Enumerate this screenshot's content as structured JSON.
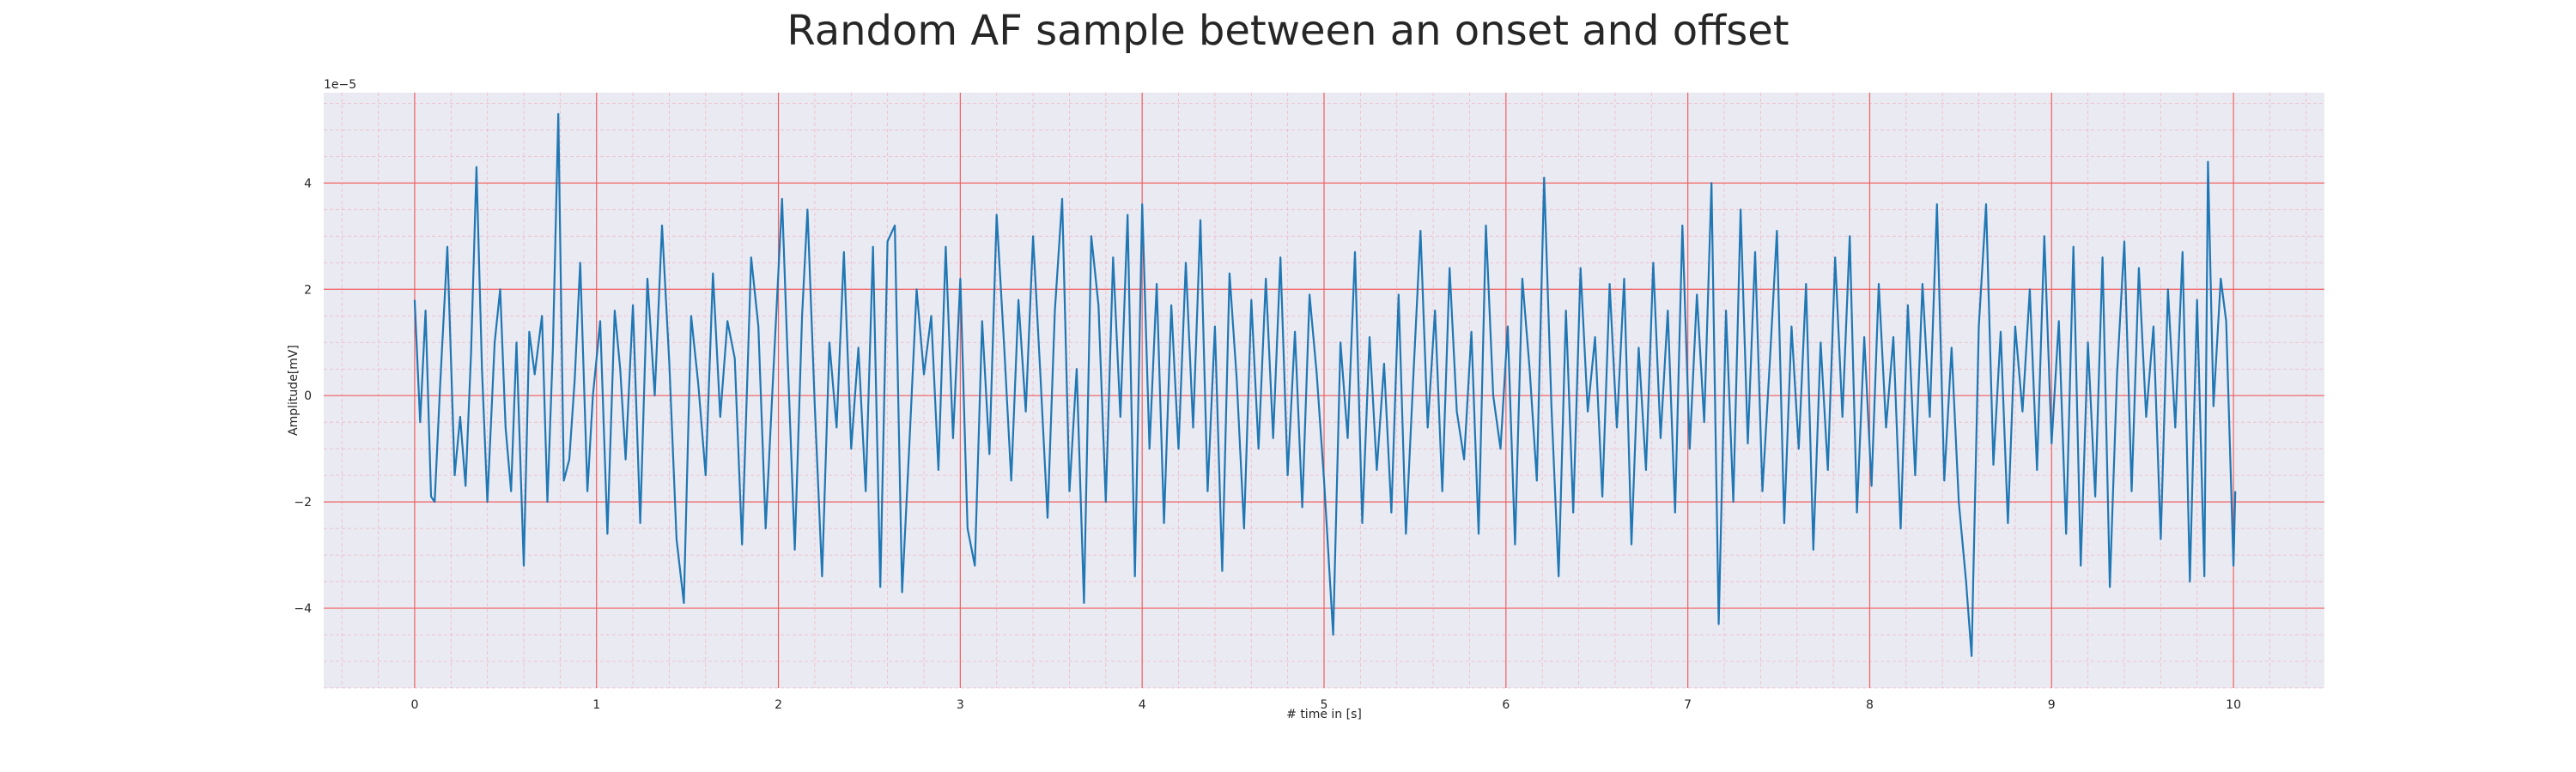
{
  "chart_data": {
    "type": "line",
    "title": "Random AF sample between an onset and offset",
    "xlabel": "# time in [s]",
    "ylabel": "Amplitude[mV]",
    "y_offset_text": "1e−5",
    "xlim": [
      -0.5,
      10.5
    ],
    "ylim": [
      -5.5,
      5.7
    ],
    "x_ticks": [
      0,
      1,
      2,
      3,
      4,
      5,
      6,
      7,
      8,
      9,
      10
    ],
    "y_ticks": [
      -4,
      -2,
      0,
      2,
      4
    ],
    "x_tick_labels": [
      "0",
      "1",
      "2",
      "3",
      "4",
      "5",
      "6",
      "7",
      "8",
      "9",
      "10"
    ],
    "y_tick_labels": [
      "−4",
      "−2",
      "0",
      "2",
      "4"
    ],
    "grid": true,
    "series": [
      {
        "color": "#1f77b4",
        "points": [
          [
            0.0,
            1.8
          ],
          [
            0.03,
            -0.5
          ],
          [
            0.06,
            1.6
          ],
          [
            0.09,
            -1.9
          ],
          [
            0.11,
            -2.0
          ],
          [
            0.14,
            0.2
          ],
          [
            0.18,
            2.8
          ],
          [
            0.22,
            -1.5
          ],
          [
            0.25,
            -0.4
          ],
          [
            0.28,
            -1.7
          ],
          [
            0.31,
            0.8
          ],
          [
            0.34,
            4.3
          ],
          [
            0.37,
            0.5
          ],
          [
            0.4,
            -2.0
          ],
          [
            0.44,
            1.0
          ],
          [
            0.47,
            2.0
          ],
          [
            0.5,
            -0.6
          ],
          [
            0.53,
            -1.8
          ],
          [
            0.56,
            1.0
          ],
          [
            0.6,
            -3.2
          ],
          [
            0.63,
            1.2
          ],
          [
            0.66,
            0.4
          ],
          [
            0.7,
            1.5
          ],
          [
            0.73,
            -2.0
          ],
          [
            0.76,
            0.9
          ],
          [
            0.79,
            5.3
          ],
          [
            0.82,
            -1.6
          ],
          [
            0.85,
            -1.2
          ],
          [
            0.88,
            0.3
          ],
          [
            0.91,
            2.5
          ],
          [
            0.95,
            -1.8
          ],
          [
            0.98,
            0.0
          ],
          [
            1.02,
            1.4
          ],
          [
            1.06,
            -2.6
          ],
          [
            1.1,
            1.6
          ],
          [
            1.13,
            0.5
          ],
          [
            1.16,
            -1.2
          ],
          [
            1.2,
            1.7
          ],
          [
            1.24,
            -2.4
          ],
          [
            1.28,
            2.2
          ],
          [
            1.32,
            0.0
          ],
          [
            1.36,
            3.2
          ],
          [
            1.4,
            0.6
          ],
          [
            1.44,
            -2.7
          ],
          [
            1.48,
            -3.9
          ],
          [
            1.52,
            1.5
          ],
          [
            1.56,
            0.2
          ],
          [
            1.6,
            -1.5
          ],
          [
            1.64,
            2.3
          ],
          [
            1.68,
            -0.4
          ],
          [
            1.72,
            1.4
          ],
          [
            1.76,
            0.7
          ],
          [
            1.8,
            -2.8
          ],
          [
            1.85,
            2.6
          ],
          [
            1.89,
            1.3
          ],
          [
            1.93,
            -2.5
          ],
          [
            1.97,
            0.3
          ],
          [
            2.02,
            3.7
          ],
          [
            2.05,
            0.8
          ],
          [
            2.09,
            -2.9
          ],
          [
            2.13,
            1.5
          ],
          [
            2.16,
            3.5
          ],
          [
            2.2,
            -0.2
          ],
          [
            2.24,
            -3.4
          ],
          [
            2.28,
            1.0
          ],
          [
            2.32,
            -0.6
          ],
          [
            2.36,
            2.7
          ],
          [
            2.4,
            -1.0
          ],
          [
            2.44,
            0.9
          ],
          [
            2.48,
            -1.8
          ],
          [
            2.52,
            2.8
          ],
          [
            2.56,
            -3.6
          ],
          [
            2.6,
            2.9
          ],
          [
            2.64,
            3.2
          ],
          [
            2.68,
            -3.7
          ],
          [
            2.72,
            -0.9
          ],
          [
            2.76,
            2.0
          ],
          [
            2.8,
            0.4
          ],
          [
            2.84,
            1.5
          ],
          [
            2.88,
            -1.4
          ],
          [
            2.92,
            2.8
          ],
          [
            2.96,
            -0.8
          ],
          [
            3.0,
            2.2
          ],
          [
            3.04,
            -2.5
          ],
          [
            3.08,
            -3.2
          ],
          [
            3.12,
            1.4
          ],
          [
            3.16,
            -1.1
          ],
          [
            3.2,
            3.4
          ],
          [
            3.24,
            1.0
          ],
          [
            3.28,
            -1.6
          ],
          [
            3.32,
            1.8
          ],
          [
            3.36,
            -0.3
          ],
          [
            3.4,
            3.0
          ],
          [
            3.44,
            0.4
          ],
          [
            3.48,
            -2.3
          ],
          [
            3.52,
            1.6
          ],
          [
            3.56,
            3.7
          ],
          [
            3.6,
            -1.8
          ],
          [
            3.64,
            0.5
          ],
          [
            3.68,
            -3.9
          ],
          [
            3.72,
            3.0
          ],
          [
            3.76,
            1.7
          ],
          [
            3.8,
            -2.0
          ],
          [
            3.84,
            2.6
          ],
          [
            3.88,
            -0.4
          ],
          [
            3.92,
            3.4
          ],
          [
            3.96,
            -3.4
          ],
          [
            4.0,
            3.6
          ],
          [
            4.04,
            -1.0
          ],
          [
            4.08,
            2.1
          ],
          [
            4.12,
            -2.4
          ],
          [
            4.16,
            1.7
          ],
          [
            4.2,
            -1.0
          ],
          [
            4.24,
            2.5
          ],
          [
            4.28,
            -0.6
          ],
          [
            4.32,
            3.3
          ],
          [
            4.36,
            -1.8
          ],
          [
            4.4,
            1.3
          ],
          [
            4.44,
            -3.3
          ],
          [
            4.48,
            2.3
          ],
          [
            4.52,
            0.3
          ],
          [
            4.56,
            -2.5
          ],
          [
            4.6,
            1.8
          ],
          [
            4.64,
            -1.0
          ],
          [
            4.68,
            2.2
          ],
          [
            4.72,
            -0.8
          ],
          [
            4.76,
            2.6
          ],
          [
            4.8,
            -1.5
          ],
          [
            4.84,
            1.2
          ],
          [
            4.88,
            -2.1
          ],
          [
            4.92,
            1.9
          ],
          [
            4.96,
            0.4
          ],
          [
            5.0,
            -1.6
          ],
          [
            5.05,
            -4.5
          ],
          [
            5.09,
            1.0
          ],
          [
            5.13,
            -0.8
          ],
          [
            5.17,
            2.7
          ],
          [
            5.21,
            -2.4
          ],
          [
            5.25,
            1.1
          ],
          [
            5.29,
            -1.4
          ],
          [
            5.33,
            0.6
          ],
          [
            5.37,
            -2.2
          ],
          [
            5.41,
            1.9
          ],
          [
            5.45,
            -2.6
          ],
          [
            5.49,
            0.3
          ],
          [
            5.53,
            3.1
          ],
          [
            5.57,
            -0.6
          ],
          [
            5.61,
            1.6
          ],
          [
            5.65,
            -1.8
          ],
          [
            5.69,
            2.4
          ],
          [
            5.73,
            -0.3
          ],
          [
            5.77,
            -1.2
          ],
          [
            5.81,
            1.2
          ],
          [
            5.85,
            -2.6
          ],
          [
            5.89,
            3.2
          ],
          [
            5.93,
            0.0
          ],
          [
            5.97,
            -1.0
          ],
          [
            6.01,
            1.3
          ],
          [
            6.05,
            -2.8
          ],
          [
            6.09,
            2.2
          ],
          [
            6.13,
            0.5
          ],
          [
            6.17,
            -1.6
          ],
          [
            6.21,
            4.1
          ],
          [
            6.25,
            -0.2
          ],
          [
            6.29,
            -3.4
          ],
          [
            6.33,
            1.6
          ],
          [
            6.37,
            -2.2
          ],
          [
            6.41,
            2.4
          ],
          [
            6.45,
            -0.3
          ],
          [
            6.49,
            1.1
          ],
          [
            6.53,
            -1.9
          ],
          [
            6.57,
            2.1
          ],
          [
            6.61,
            -0.6
          ],
          [
            6.65,
            2.2
          ],
          [
            6.69,
            -2.8
          ],
          [
            6.73,
            0.9
          ],
          [
            6.77,
            -1.4
          ],
          [
            6.81,
            2.5
          ],
          [
            6.85,
            -0.8
          ],
          [
            6.89,
            1.6
          ],
          [
            6.93,
            -2.2
          ],
          [
            6.97,
            3.2
          ],
          [
            7.01,
            -1.0
          ],
          [
            7.05,
            1.9
          ],
          [
            7.09,
            -0.5
          ],
          [
            7.13,
            4.0
          ],
          [
            7.17,
            -4.3
          ],
          [
            7.21,
            1.6
          ],
          [
            7.25,
            -2.0
          ],
          [
            7.29,
            3.5
          ],
          [
            7.33,
            -0.9
          ],
          [
            7.37,
            2.7
          ],
          [
            7.41,
            -1.8
          ],
          [
            7.45,
            0.6
          ],
          [
            7.49,
            3.1
          ],
          [
            7.53,
            -2.4
          ],
          [
            7.57,
            1.3
          ],
          [
            7.61,
            -1.0
          ],
          [
            7.65,
            2.1
          ],
          [
            7.69,
            -2.9
          ],
          [
            7.73,
            1.0
          ],
          [
            7.77,
            -1.4
          ],
          [
            7.81,
            2.6
          ],
          [
            7.85,
            -0.4
          ],
          [
            7.89,
            3.0
          ],
          [
            7.93,
            -2.2
          ],
          [
            7.97,
            1.1
          ],
          [
            8.01,
            -1.7
          ],
          [
            8.05,
            2.1
          ],
          [
            8.09,
            -0.6
          ],
          [
            8.13,
            1.1
          ],
          [
            8.17,
            -2.5
          ],
          [
            8.21,
            1.7
          ],
          [
            8.25,
            -1.5
          ],
          [
            8.29,
            2.1
          ],
          [
            8.33,
            -0.4
          ],
          [
            8.37,
            3.6
          ],
          [
            8.41,
            -1.6
          ],
          [
            8.45,
            0.9
          ],
          [
            8.49,
            -2.0
          ],
          [
            8.53,
            -3.5
          ],
          [
            8.56,
            -4.9
          ],
          [
            8.6,
            1.3
          ],
          [
            8.64,
            3.6
          ],
          [
            8.68,
            -1.3
          ],
          [
            8.72,
            1.2
          ],
          [
            8.76,
            -2.4
          ],
          [
            8.8,
            1.3
          ],
          [
            8.84,
            -0.3
          ],
          [
            8.88,
            2.0
          ],
          [
            8.92,
            -1.4
          ],
          [
            8.96,
            3.0
          ],
          [
            9.0,
            -0.9
          ],
          [
            9.04,
            1.4
          ],
          [
            9.08,
            -2.6
          ],
          [
            9.12,
            2.8
          ],
          [
            9.16,
            -3.2
          ],
          [
            9.2,
            1.0
          ],
          [
            9.24,
            -1.9
          ],
          [
            9.28,
            2.6
          ],
          [
            9.32,
            -3.6
          ],
          [
            9.36,
            0.4
          ],
          [
            9.4,
            2.9
          ],
          [
            9.44,
            -1.8
          ],
          [
            9.48,
            2.4
          ],
          [
            9.52,
            -0.4
          ],
          [
            9.56,
            1.3
          ],
          [
            9.6,
            -2.7
          ],
          [
            9.64,
            2.0
          ],
          [
            9.68,
            -0.6
          ],
          [
            9.72,
            2.7
          ],
          [
            9.76,
            -3.5
          ],
          [
            9.8,
            1.8
          ],
          [
            9.84,
            -3.4
          ],
          [
            9.86,
            4.4
          ],
          [
            9.89,
            -0.2
          ],
          [
            9.93,
            2.2
          ],
          [
            9.96,
            1.4
          ],
          [
            10.0,
            -3.2
          ],
          [
            10.01,
            -1.8
          ]
        ]
      }
    ]
  }
}
